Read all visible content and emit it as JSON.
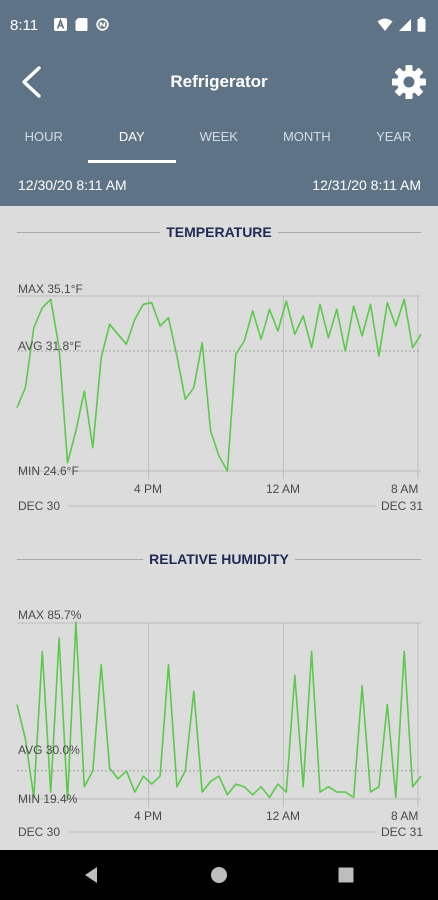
{
  "status": {
    "time": "8:11",
    "icons_left": [
      "a-icon",
      "sd-card-icon",
      "no-data-icon"
    ],
    "icons_right": [
      "wifi-icon",
      "signal-icon",
      "battery-icon"
    ]
  },
  "header": {
    "title": "Refrigerator",
    "back_icon": "back-arrow-icon",
    "settings_icon": "gear-icon"
  },
  "tabs": [
    {
      "label": "HOUR",
      "active": false
    },
    {
      "label": "DAY",
      "active": true
    },
    {
      "label": "WEEK",
      "active": false
    },
    {
      "label": "MONTH",
      "active": false
    },
    {
      "label": "YEAR",
      "active": false
    }
  ],
  "range": {
    "start": "12/30/20 8:11 AM",
    "end": "12/31/20 8:11 AM"
  },
  "temperature": {
    "title": "TEMPERATURE",
    "max_label": "MAX 35.1°F",
    "avg_label": "AVG 31.8°F",
    "min_label": "MIN 24.6°F",
    "x_ticks": [
      "4 PM",
      "12 AM",
      "8 AM"
    ],
    "date_start": "DEC 30",
    "date_end": "DEC 31"
  },
  "humidity": {
    "title": "RELATIVE HUMIDITY",
    "max_label": "MAX 85.7%",
    "avg_label": "AVG 30.0%",
    "min_label": "MIN 19.4%",
    "x_ticks": [
      "4 PM",
      "12 AM",
      "8 AM"
    ],
    "date_start": "DEC 30",
    "date_end": "DEC 31"
  },
  "chart_data": [
    {
      "type": "line",
      "title": "TEMPERATURE",
      "x_range": [
        "12/30/20 8:11 AM",
        "12/31/20 8:11 AM"
      ],
      "x_ticks": [
        "4 PM",
        "12 AM",
        "8 AM"
      ],
      "ylim": [
        24.6,
        35.1
      ],
      "y_ref_lines": {
        "max": 35.1,
        "avg": 31.8,
        "min": 24.6
      },
      "color": "#5cc84c",
      "x": [
        0,
        0.5,
        1,
        1.5,
        2,
        2.5,
        3,
        3.5,
        4,
        4.5,
        5,
        5.5,
        6,
        6.5,
        7,
        7.5,
        8,
        8.5,
        9,
        9.5,
        10,
        10.5,
        11,
        11.5,
        12,
        12.5,
        13,
        13.5,
        14,
        14.5,
        15,
        15.5,
        16,
        16.5,
        17,
        17.5,
        18,
        18.5,
        19,
        19.5,
        20,
        20.5,
        21,
        21.5,
        22,
        22.5,
        23,
        23.5,
        24
      ],
      "values": [
        28.4,
        29.6,
        33.2,
        34.4,
        34.9,
        32.0,
        25.1,
        27.0,
        29.4,
        26.0,
        31.4,
        33.4,
        32.8,
        32.2,
        33.7,
        34.6,
        34.7,
        33.3,
        33.8,
        31.5,
        28.9,
        29.6,
        32.3,
        27.0,
        25.5,
        24.6,
        31.6,
        32.4,
        34.2,
        32.5,
        34.3,
        33.0,
        34.8,
        32.8,
        33.9,
        32.0,
        34.6,
        32.6,
        34.3,
        31.8,
        34.5,
        32.7,
        34.6,
        31.5,
        34.7,
        33.3,
        34.9,
        32.0,
        32.8
      ]
    },
    {
      "type": "line",
      "title": "RELATIVE HUMIDITY",
      "x_range": [
        "12/30/20 8:11 AM",
        "12/31/20 8:11 AM"
      ],
      "x_ticks": [
        "4 PM",
        "12 AM",
        "8 AM"
      ],
      "ylim": [
        19.4,
        85.7
      ],
      "y_ref_lines": {
        "max": 85.7,
        "avg": 30.0,
        "min": 19.4
      },
      "color": "#5cc84c",
      "x": [
        0,
        0.5,
        1,
        1.5,
        2,
        2.5,
        3,
        3.5,
        4,
        4.5,
        5,
        5.5,
        6,
        6.5,
        7,
        7.5,
        8,
        8.5,
        9,
        9.5,
        10,
        10.5,
        11,
        11.5,
        12,
        12.5,
        13,
        13.5,
        14,
        14.5,
        15,
        15.5,
        16,
        16.5,
        17,
        17.5,
        18,
        18.5,
        19,
        19.5,
        20,
        20.5,
        21,
        21.5,
        22,
        22.5,
        23,
        23.5,
        24
      ],
      "values": [
        55,
        42,
        20,
        75,
        22,
        80,
        19,
        86,
        24,
        30,
        70,
        31,
        27,
        30,
        22,
        28,
        25,
        28,
        70,
        24,
        30,
        60,
        22,
        26,
        28,
        21,
        25,
        24,
        21,
        24,
        20,
        25,
        22,
        66,
        24,
        75,
        22,
        24,
        22,
        22,
        20,
        62,
        22,
        24,
        55,
        20,
        75,
        24,
        28
      ]
    }
  ]
}
